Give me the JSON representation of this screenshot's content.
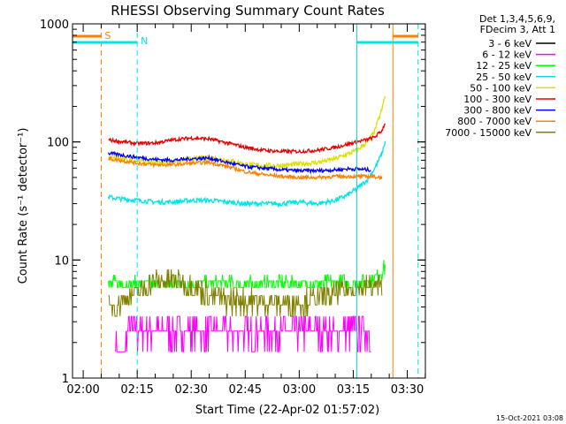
{
  "chart_data": {
    "type": "line",
    "title": "RHESSI Observing Summary Count Rates",
    "xlabel": "Start Time (22-Apr-02 01:57:02)",
    "ylabel": "Count Rate (s⁻¹ detector⁻¹)",
    "yscale": "log",
    "ylim": [
      1,
      1000
    ],
    "xlim": [
      "01:57:02",
      "03:35:02"
    ],
    "xtick_labels": [
      "02:00",
      "02:15",
      "02:30",
      "02:45",
      "03:00",
      "03:15",
      "03:30"
    ],
    "ytick_labels": [
      "1",
      "10",
      "100",
      "1000"
    ],
    "legend_header": [
      "Det 1,3,4,5,6,9,",
      "FDecim 3, Att 1"
    ],
    "footer_date": "15-Oct-2021 03:08",
    "series": [
      {
        "name": "3 - 6 keV",
        "color": "#000000",
        "x": [],
        "y": []
      },
      {
        "name": "6 - 12 keV",
        "color": "#ff00ff",
        "x": [
          "02:09",
          "02:11",
          "02:12",
          "02:13",
          "02:15",
          "02:20",
          "02:25",
          "02:30",
          "02:35",
          "02:40",
          "02:45",
          "02:50",
          "02:55",
          "03:00",
          "03:05",
          "03:10",
          "03:15",
          "03:20"
        ],
        "y": [
          2.2,
          1.3,
          2.1,
          2.7,
          2.5,
          2.5,
          2.5,
          2.5,
          2.5,
          2.5,
          2.5,
          2.5,
          2.5,
          2.5,
          2.5,
          2.5,
          2.5,
          2.5
        ]
      },
      {
        "name": "12 - 25 keV",
        "color": "#00ff00",
        "x": [
          "02:07",
          "02:10",
          "02:15",
          "02:20",
          "02:25",
          "02:30",
          "02:35",
          "02:40",
          "02:45",
          "02:50",
          "02:55",
          "03:00",
          "03:05",
          "03:10",
          "03:15",
          "03:20",
          "03:23",
          "03:24"
        ],
        "y": [
          6.2,
          6.3,
          6.3,
          6.3,
          6.3,
          6.3,
          6.3,
          6.3,
          6.2,
          6.3,
          6.4,
          6.3,
          6.3,
          6.5,
          6.4,
          6.8,
          8.0,
          9.0
        ]
      },
      {
        "name": "25 - 50 keV",
        "color": "#00e5e5",
        "x": [
          "02:07",
          "02:10",
          "02:15",
          "02:20",
          "02:25",
          "02:30",
          "02:35",
          "02:40",
          "02:45",
          "02:50",
          "02:55",
          "03:00",
          "03:05",
          "03:10",
          "03:13",
          "03:16",
          "03:19",
          "03:21",
          "03:23",
          "03:24"
        ],
        "y": [
          34,
          33,
          32,
          31,
          31,
          32,
          32,
          31,
          30,
          30,
          30,
          31,
          30,
          32,
          35,
          40,
          48,
          60,
          80,
          105
        ]
      },
      {
        "name": "50 - 100 keV",
        "color": "#dede00",
        "x": [
          "02:07",
          "02:10",
          "02:15",
          "02:20",
          "02:25",
          "02:30",
          "02:35",
          "02:40",
          "02:45",
          "02:50",
          "02:55",
          "03:00",
          "03:05",
          "03:10",
          "03:13",
          "03:16",
          "03:19",
          "03:21",
          "03:23",
          "03:24"
        ],
        "y": [
          73,
          72,
          69,
          67,
          68,
          72,
          74,
          70,
          65,
          63,
          63,
          65,
          67,
          72,
          78,
          85,
          100,
          125,
          190,
          260
        ]
      },
      {
        "name": "100 - 300 keV",
        "color": "#e80000",
        "x": [
          "02:07",
          "02:10",
          "02:15",
          "02:20",
          "02:25",
          "02:30",
          "02:35",
          "02:40",
          "02:45",
          "02:50",
          "02:55",
          "03:00",
          "03:05",
          "03:10",
          "03:13",
          "03:16",
          "03:19",
          "03:21",
          "03:23",
          "03:24"
        ],
        "y": [
          104,
          101,
          97,
          98,
          104,
          108,
          106,
          98,
          90,
          85,
          83,
          83,
          85,
          90,
          95,
          100,
          105,
          110,
          125,
          150
        ]
      },
      {
        "name": "300 - 800 keV",
        "color": "#0000ff",
        "x": [
          "02:07",
          "02:10",
          "02:15",
          "02:20",
          "02:25",
          "02:30",
          "02:35",
          "02:40",
          "02:45",
          "02:50",
          "02:55",
          "03:00",
          "03:05",
          "03:10",
          "03:13",
          "03:16",
          "03:19",
          "03:20"
        ],
        "y": [
          80,
          78,
          74,
          71,
          70,
          72,
          73,
          67,
          62,
          60,
          58,
          57,
          57,
          58,
          59,
          59,
          58,
          58
        ]
      },
      {
        "name": "800 - 7000 keV",
        "color": "#ff8000",
        "x": [
          "02:07",
          "02:10",
          "02:15",
          "02:20",
          "02:25",
          "02:30",
          "02:35",
          "02:40",
          "02:45",
          "02:50",
          "02:55",
          "03:00",
          "03:05",
          "03:10",
          "03:13",
          "03:16",
          "03:19",
          "03:20",
          "03:23"
        ],
        "y": [
          72,
          70,
          66,
          64,
          64,
          66,
          67,
          62,
          56,
          53,
          51,
          50,
          50,
          51,
          51,
          51,
          51,
          51,
          50
        ]
      },
      {
        "name": "7000 - 15000 keV",
        "color": "#808000",
        "x": [
          "02:07",
          "02:10",
          "02:15",
          "02:20",
          "02:25",
          "02:30",
          "02:35",
          "02:40",
          "02:45",
          "02:50",
          "02:55",
          "03:00",
          "03:05",
          "03:10",
          "03:15",
          "03:20",
          "03:23"
        ],
        "y": [
          4.0,
          4.3,
          5.2,
          6.5,
          6.8,
          6.0,
          5.0,
          4.6,
          4.5,
          4.4,
          4.3,
          4.4,
          4.6,
          5.2,
          5.8,
          6.0,
          5.8
        ]
      }
    ],
    "markers": [
      {
        "label": "S",
        "color": "#ff8000",
        "time": "02:05"
      },
      {
        "label": "N",
        "color": "#00e5e5",
        "time": "02:15"
      }
    ],
    "interval_lines": [
      {
        "color": "#00e5e5",
        "time": "03:16",
        "style": "solid"
      },
      {
        "color": "#ff8000",
        "time": "03:26",
        "style": "solid"
      },
      {
        "color": "#00e5e5",
        "time": "03:33",
        "style": "dashed"
      }
    ]
  }
}
